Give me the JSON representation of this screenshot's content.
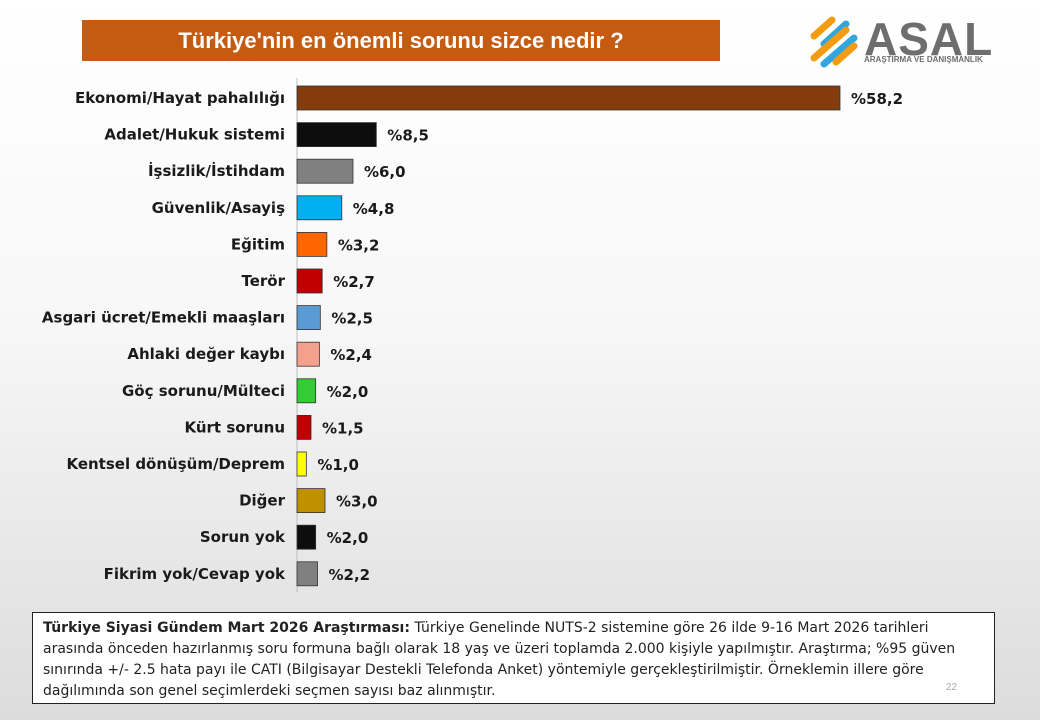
{
  "title": "Türkiye'nin en önemli sorunu sizce nedir ?",
  "logo": {
    "word": "ASAL",
    "subtitle": "ARAŞTIRMA VE DANIŞMANLIK"
  },
  "chart_data": {
    "type": "bar",
    "orientation": "horizontal",
    "title": "Türkiye'nin en önemli sorunu sizce nedir ?",
    "categories": [
      "Ekonomi/Hayat pahalılığı",
      "Adalet/Hukuk sistemi",
      "İşsizlik/İstihdam",
      "Güvenlik/Asayiş",
      "Eğitim",
      "Terör",
      "Asgari ücret/Emekli maaşları",
      "Ahlaki değer kaybı",
      "Göç sorunu/Mülteci",
      "Kürt sorunu",
      "Kentsel dönüşüm/Deprem",
      "Diğer",
      "Sorun yok",
      "Fikrim yok/Cevap yok"
    ],
    "values": [
      58.2,
      8.5,
      6.0,
      4.8,
      3.2,
      2.7,
      2.5,
      2.4,
      2.0,
      1.5,
      1.0,
      3.0,
      2.0,
      2.2
    ],
    "value_labels": [
      "%58,2",
      "%8,5",
      "%6,0",
      "%4,8",
      "%3,2",
      "%2,7",
      "%2,5",
      "%2,4",
      "%2,0",
      "%1,5",
      "%1,0",
      "%3,0",
      "%2,0",
      "%2,2"
    ],
    "colors": [
      "#843c0c",
      "#0d0d0d",
      "#808080",
      "#00b0f0",
      "#ff6600",
      "#c00000",
      "#5b9bd5",
      "#f4a08c",
      "#33cc33",
      "#c00000",
      "#ffff00",
      "#bf9000",
      "#0d0d0d",
      "#808080"
    ],
    "xlim": [
      0,
      60
    ],
    "grid": false,
    "legend": "none"
  },
  "note": {
    "bold": "Türkiye Siyasi Gündem Mart 2026 Araştırması:",
    "text": " Türkiye Genelinde NUTS-2 sistemine göre 26 ilde 9-16 Mart 2026 tarihleri arasında önceden hazırlanmış soru formuna bağlı olarak 18 yaş ve üzeri toplamda 2.000 kişiyle yapılmıştır. Araştırma; %95 güven sınırında +/- 2.5 hata payı ile CATI (Bilgisayar Destekli Telefonda Anket) yöntemiyle gerçekleştirilmiştir. Örneklemin illere göre dağılımında son genel seçimlerdeki seçmen sayısı baz alınmıştır."
  },
  "page_number": "22"
}
